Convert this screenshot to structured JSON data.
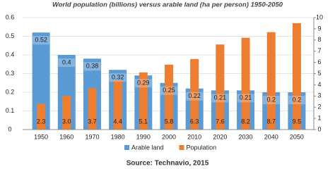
{
  "chart_data": {
    "type": "bar",
    "title": "World population (billions) versus arable land (ha per person) 1950-2050",
    "source": "Source: Technavio, 2015",
    "categories": [
      "1950",
      "1960",
      "1970",
      "1980",
      "1990",
      "2000",
      "2010",
      "2020",
      "2030",
      "2040",
      "2050"
    ],
    "series": [
      {
        "name": "Arable land",
        "color": "#5b9bd5",
        "values": [
          0.52,
          0.4,
          0.38,
          0.32,
          0.29,
          0.25,
          0.22,
          0.21,
          0.21,
          0.2,
          0.2
        ]
      },
      {
        "name": "Population",
        "color": "#ed7d31",
        "axis": "y2",
        "values": [
          2.3,
          3,
          3.7,
          4.4,
          5.1,
          5.8,
          6.3,
          7.6,
          8.2,
          8.7,
          9.5
        ],
        "value_labels": [
          "2.3",
          "3.0",
          "3.7",
          "4.4",
          "5.1",
          "5.8",
          "6.3",
          "7.6",
          "8.2",
          "8.7",
          "9.5"
        ]
      }
    ],
    "ylim": [
      0,
      0.6
    ],
    "yticks": [
      0,
      0.1,
      0.2,
      0.3,
      0.4,
      0.5,
      0.6
    ],
    "y2lim": [
      0,
      10
    ],
    "y2ticks": [
      0,
      1,
      2,
      3,
      4,
      5,
      6,
      7,
      8,
      9,
      10
    ],
    "grid": true,
    "legend": "bottom"
  }
}
